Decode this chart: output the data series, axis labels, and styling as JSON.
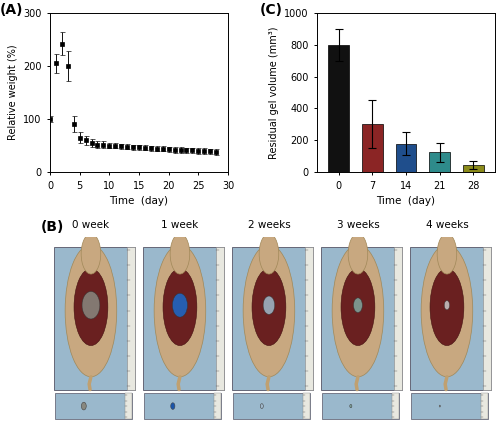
{
  "panel_A_label": "(A)",
  "panel_B_label": "(B)",
  "panel_C_label": "(C)",
  "line_x": [
    0,
    1,
    2,
    3,
    4,
    5,
    6,
    7,
    8,
    9,
    10,
    11,
    12,
    13,
    14,
    15,
    16,
    17,
    18,
    19,
    20,
    21,
    22,
    23,
    24,
    25,
    26,
    27,
    28
  ],
  "line_y": [
    100,
    205,
    242,
    200,
    90,
    65,
    60,
    55,
    52,
    52,
    50,
    50,
    49,
    48,
    47,
    47,
    46,
    45,
    44,
    44,
    43,
    42,
    42,
    41,
    41,
    40,
    40,
    39,
    38
  ],
  "line_yerr": [
    5,
    18,
    22,
    28,
    15,
    10,
    8,
    7,
    6,
    6,
    5,
    5,
    5,
    5,
    5,
    5,
    5,
    5,
    5,
    5,
    5,
    5,
    5,
    5,
    5,
    5,
    5,
    5,
    5
  ],
  "bar_heights": [
    800,
    300,
    180,
    125,
    45
  ],
  "bar_errors": [
    100,
    150,
    70,
    60,
    25
  ],
  "bar_colors": [
    "#111111",
    "#8B2525",
    "#1F4E8C",
    "#2E8B8B",
    "#8B8B1A"
  ],
  "bar_labels": [
    "0",
    "7",
    "14",
    "21",
    "28"
  ],
  "line_xlabel": "Time  (day)",
  "line_ylabel": "Relative weight (%)",
  "line_ylim": [
    0,
    300
  ],
  "line_yticks": [
    0,
    100,
    200,
    300
  ],
  "line_xlim": [
    0,
    30
  ],
  "line_xticks": [
    0,
    5,
    10,
    15,
    20,
    25,
    30
  ],
  "bar_xlabel": "Time  (day)",
  "bar_ylabel": "Residual gel volume (mm³)",
  "bar_ylim": [
    0,
    1000
  ],
  "bar_yticks": [
    0,
    200,
    400,
    600,
    800,
    1000
  ],
  "week_labels": [
    "0 week",
    "1 week",
    "2 weeks",
    "3 weeks",
    "4 weeks"
  ],
  "bg_color": "#ffffff",
  "line_color": "#111111",
  "marker_style": "s",
  "marker_size": 3.5,
  "mouse_bg": "#9ab8cc",
  "mouse_body": "#c8a882",
  "ruler_color": "#778899",
  "gel_colors_mouse": [
    "#888880",
    "#1a6acc",
    "#a0bbcc",
    "#80a8a0",
    "#c8c8c8"
  ],
  "gel_colors_sample": [
    "#888880",
    "#1a55aa",
    "#a0b8cc",
    "#80a8a0",
    "#c0c0c0"
  ],
  "sample_sizes": [
    0.042,
    0.036,
    0.026,
    0.018,
    0.01
  ]
}
